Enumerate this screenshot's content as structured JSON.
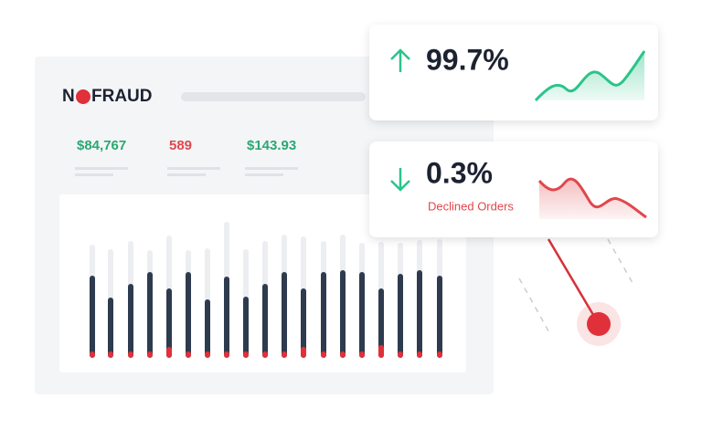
{
  "logo": {
    "before": "N",
    "after": "FRAUD"
  },
  "stats": [
    "$84,767",
    "589",
    "$143.93"
  ],
  "cards": [
    {
      "value": "99.7%"
    },
    {
      "value": "0.3%",
      "label": "Declined Orders"
    }
  ]
}
